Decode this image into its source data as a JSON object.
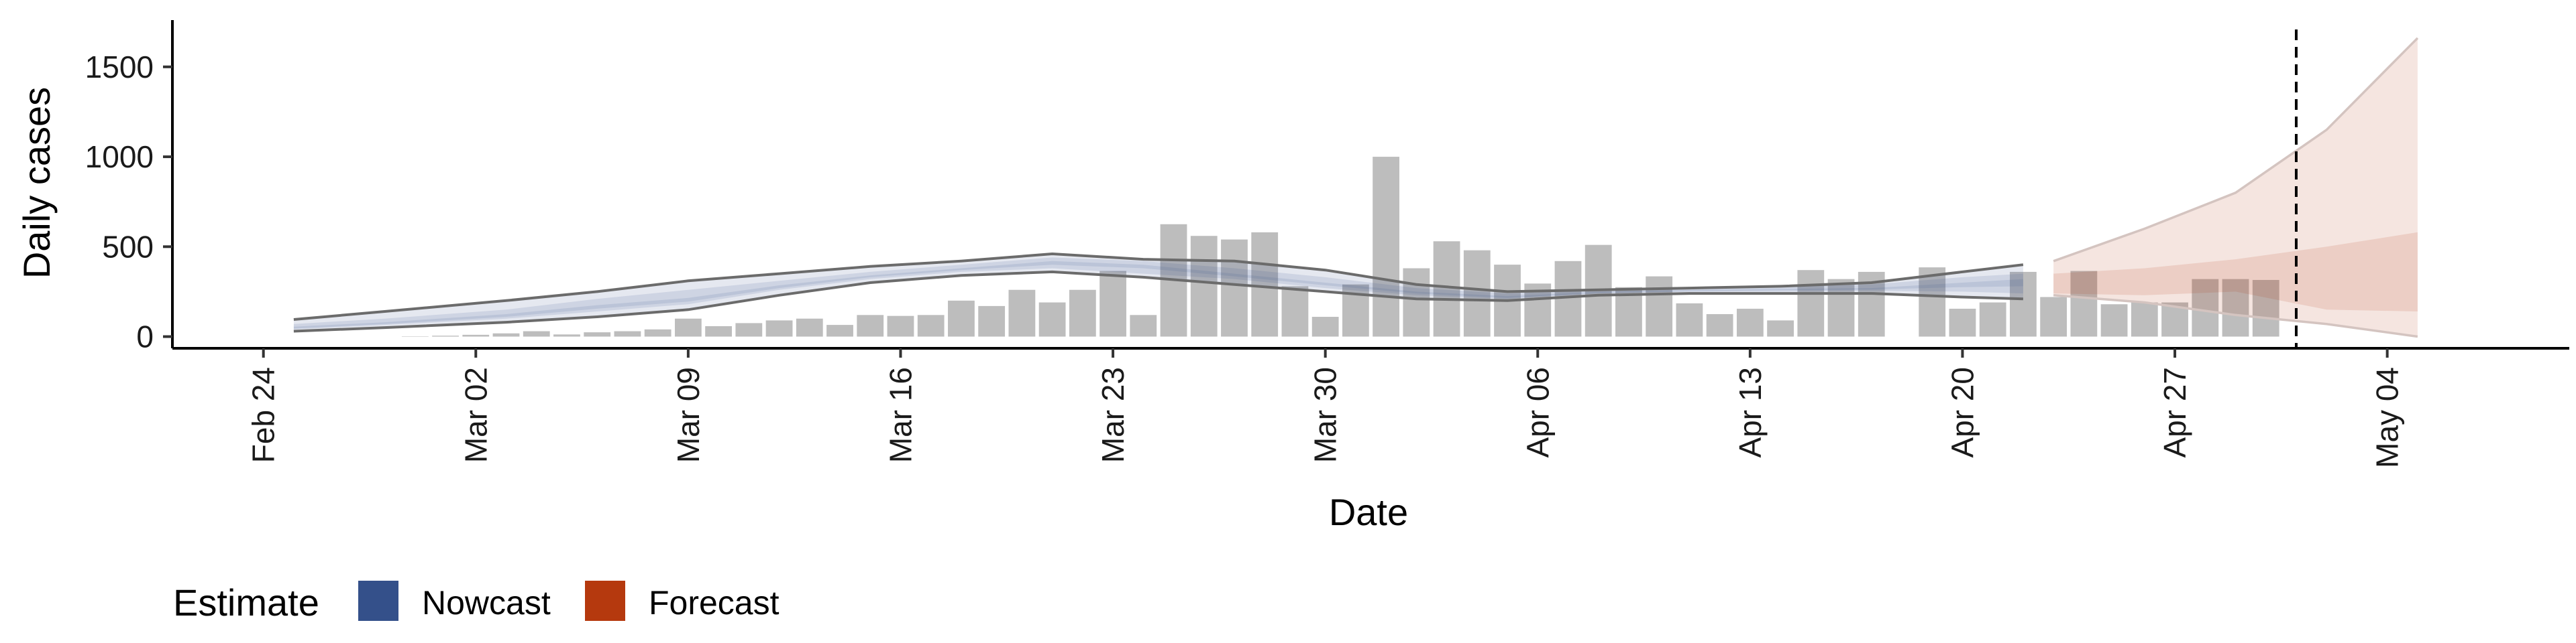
{
  "chart_data": {
    "type": "bar",
    "xlabel": "Date",
    "ylabel": "Daily cases",
    "x_range": [
      "2020-02-21",
      "2020-05-10"
    ],
    "ylim": [
      -65,
      1760
    ],
    "y_ticks": [
      0,
      500,
      1000,
      1500
    ],
    "x_ticks": [
      {
        "date": "2020-02-24",
        "label": "Feb 24"
      },
      {
        "date": "2020-03-02",
        "label": "Mar 02"
      },
      {
        "date": "2020-03-09",
        "label": "Mar 09"
      },
      {
        "date": "2020-03-16",
        "label": "Mar 16"
      },
      {
        "date": "2020-03-23",
        "label": "Mar 23"
      },
      {
        "date": "2020-03-30",
        "label": "Mar 30"
      },
      {
        "date": "2020-04-06",
        "label": "Apr 06"
      },
      {
        "date": "2020-04-13",
        "label": "Apr 13"
      },
      {
        "date": "2020-04-20",
        "label": "Apr 20"
      },
      {
        "date": "2020-04-27",
        "label": "Apr 27"
      },
      {
        "date": "2020-05-04",
        "label": "May 04"
      }
    ],
    "bar_color": "#bdbdbd",
    "bars": {
      "start_date": "2020-02-29",
      "values": [
        2,
        5,
        10,
        18,
        30,
        12,
        24,
        30,
        40,
        100,
        58,
        75,
        90,
        100,
        65,
        120,
        115,
        120,
        200,
        170,
        260,
        190,
        260,
        365,
        120,
        625,
        560,
        540,
        580,
        280,
        110,
        290,
        1000,
        380,
        530,
        480,
        400,
        295,
        420,
        510,
        275,
        335,
        185,
        125,
        155,
        90,
        370,
        320,
        360,
        0,
        385,
        155,
        190,
        360,
        220,
        365,
        180,
        190,
        190,
        320,
        320,
        315
      ]
    },
    "series": [
      {
        "name": "Nowcast",
        "color": "#34508a",
        "dates": [
          "2020-02-25",
          "2020-02-28",
          "2020-03-03",
          "2020-03-06",
          "2020-03-09",
          "2020-03-12",
          "2020-03-15",
          "2020-03-18",
          "2020-03-21",
          "2020-03-24",
          "2020-03-27",
          "2020-03-30",
          "2020-04-02",
          "2020-04-05",
          "2020-04-08",
          "2020-04-11",
          "2020-04-14",
          "2020-04-17",
          "2020-04-20",
          "2020-04-22"
        ],
        "upper90": [
          95,
          140,
          200,
          250,
          310,
          350,
          390,
          420,
          460,
          430,
          420,
          370,
          290,
          250,
          260,
          270,
          280,
          300,
          360,
          400
        ],
        "lower90": [
          30,
          50,
          80,
          110,
          150,
          230,
          300,
          340,
          360,
          330,
          290,
          250,
          210,
          200,
          230,
          240,
          240,
          240,
          220,
          210
        ],
        "upper50": [
          70,
          100,
          150,
          210,
          260,
          310,
          360,
          400,
          440,
          420,
          380,
          330,
          270,
          240,
          255,
          265,
          275,
          290,
          330,
          350
        ],
        "lower50": [
          40,
          65,
          100,
          140,
          180,
          260,
          320,
          360,
          380,
          350,
          320,
          270,
          230,
          210,
          240,
          250,
          250,
          255,
          250,
          240
        ],
        "upper20": [
          55,
          80,
          125,
          175,
          215,
          285,
          340,
          380,
          420,
          400,
          350,
          300,
          250,
          225,
          248,
          258,
          265,
          270,
          300,
          320
        ],
        "lower20": [
          45,
          70,
          110,
          155,
          195,
          270,
          330,
          370,
          400,
          380,
          335,
          285,
          240,
          215,
          243,
          252,
          258,
          262,
          275,
          280
        ]
      },
      {
        "name": "Forecast",
        "color": "#b5390e",
        "dates": [
          "2020-04-23",
          "2020-04-26",
          "2020-04-29",
          "2020-05-02",
          "2020-05-05"
        ],
        "upper90": [
          420,
          600,
          800,
          1150,
          1660
        ],
        "lower90": [
          230,
          190,
          120,
          70,
          0
        ],
        "upper50": [
          350,
          380,
          430,
          500,
          580
        ],
        "lower50": [
          240,
          230,
          250,
          150,
          140
        ]
      }
    ],
    "vline_date": "2020-05-01",
    "legend": {
      "title": "Estimate",
      "entries": [
        "Nowcast",
        "Forecast"
      ],
      "position": "bottom"
    }
  }
}
